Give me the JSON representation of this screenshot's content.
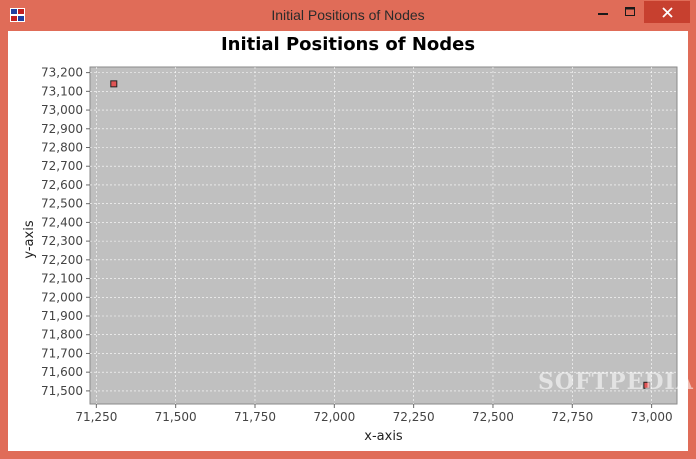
{
  "window": {
    "title": "Initial Positions of Nodes",
    "icon": "java-app-icon",
    "controls": [
      "minimize-icon",
      "maximize-icon",
      "close-icon"
    ],
    "frame_color": "#e06c58",
    "close_color": "#c7402f"
  },
  "watermark": "SOFTPEDIA",
  "chart_data": {
    "type": "scatter",
    "title": "Initial Positions of Nodes",
    "xlabel": "x-axis",
    "ylabel": "y-axis",
    "xlim": [
      71230,
      73080
    ],
    "ylim": [
      71430,
      73230
    ],
    "xticks": [
      71250,
      71500,
      71750,
      72000,
      72250,
      72500,
      72750,
      73000
    ],
    "xtick_labels": [
      "71,250",
      "71,500",
      "71,750",
      "72,000",
      "72,250",
      "72,500",
      "72,750",
      "73,000"
    ],
    "yticks": [
      71500,
      71600,
      71700,
      71800,
      71900,
      72000,
      72100,
      72200,
      72300,
      72400,
      72500,
      72600,
      72700,
      72800,
      72900,
      73000,
      73100,
      73200
    ],
    "ytick_labels": [
      "71,500",
      "71,600",
      "71,700",
      "71,800",
      "71,900",
      "72,000",
      "72,100",
      "72,200",
      "72,300",
      "72,400",
      "72,500",
      "72,600",
      "72,700",
      "72,800",
      "72,900",
      "73,000",
      "73,100",
      "73,200"
    ],
    "grid": true,
    "plot_background": "#c0c0c0",
    "marker_color": "#e05555",
    "points": [
      {
        "x": 71305,
        "y": 73140
      },
      {
        "x": 72985,
        "y": 71530
      }
    ]
  }
}
